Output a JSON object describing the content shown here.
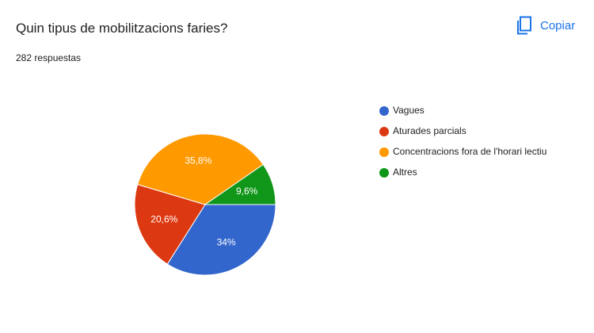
{
  "header": {
    "title": "Quin tipus de mobilitzacions faries?",
    "responses": "282 respuestas",
    "copy_label": "Copiar"
  },
  "chart_data": {
    "type": "pie",
    "categories": [
      "Vagues",
      "Aturades parcials",
      "Concentracions fora de l'horari lectiu",
      "Altres"
    ],
    "values": [
      34,
      20.6,
      35.8,
      9.6
    ],
    "value_labels": [
      "34%",
      "20,6%",
      "35,8%",
      "9,6%"
    ],
    "colors": [
      "#3366cc",
      "#dc3912",
      "#ff9900",
      "#109618"
    ]
  }
}
